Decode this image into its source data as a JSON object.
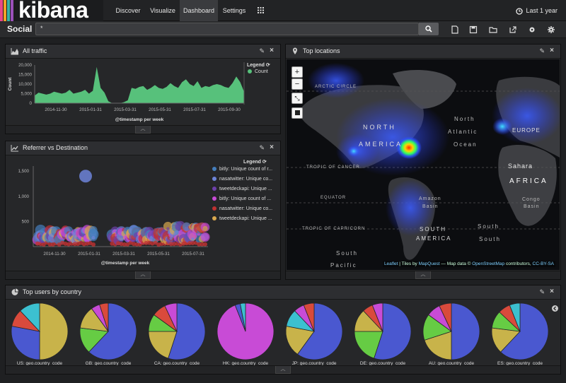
{
  "app": {
    "logo": "kibana",
    "logo_colors": [
      "#e8478b",
      "#f2a329",
      "#38b4a6",
      "#9b50ba"
    ]
  },
  "nav": {
    "items": [
      "Discover",
      "Visualize",
      "Dashboard",
      "Settings"
    ],
    "active": "Dashboard",
    "grid_icon": "grid-icon",
    "time_filter": "Last 1 year"
  },
  "subbar": {
    "title": "Social",
    "query": "*",
    "search_icon": "search-icon",
    "toolbar_icons": [
      "new-dashboard-icon",
      "save-icon",
      "open-folder-icon",
      "share-icon",
      "gear-icon",
      "settings-icon"
    ]
  },
  "panels": {
    "all_traffic": {
      "title": "All traffic",
      "legend_title": "Legend",
      "legend_items": [
        "Count"
      ],
      "legend_color": "#57c17b",
      "ylabel": "Count",
      "yticks": [
        "20,000",
        "15,000",
        "10,000",
        "5,000",
        "0"
      ],
      "xticks": [
        "2014-11-30",
        "2015-01-31",
        "2015-03-31",
        "2015-05-31",
        "2015-07-31",
        "2015-09-30"
      ],
      "xlabel": "@timestamp per week"
    },
    "referrer": {
      "title": "Referrer vs Destination",
      "legend_title": "Legend",
      "yticks": [
        "1,500",
        "1,000",
        "500"
      ],
      "xticks": [
        "2014-11-30",
        "2015-01-31",
        "2015-03-31",
        "2015-05-31",
        "2015-07-31",
        "2015-09-30"
      ],
      "xlabel": "@timestamp per week",
      "legend_items": [
        {
          "label": "bitly: Unique count of r...",
          "color": "#447ebc"
        },
        {
          "label": "nasatwitter: Unique co...",
          "color": "#6d84d8"
        },
        {
          "label": "tweetdeckapi: Unique ...",
          "color": "#6e40aa"
        },
        {
          "label": "bitly: Unique count of ...",
          "color": "#c84bd6"
        },
        {
          "label": "nasatwitter: Unique co...",
          "color": "#bf3232"
        },
        {
          "label": "tweetdeckapi: Unique ...",
          "color": "#d9a84e"
        }
      ]
    },
    "top_locations": {
      "title": "Top locations",
      "labels": {
        "arctic": "ARCTIC CIRCLE",
        "na": "NORTH",
        "na2": "AMERICA",
        "north": "North",
        "atlantic": "Atlantic",
        "ocean": "Ocean",
        "europe": "EUROPE",
        "sahara": "Sahara",
        "africa": "AFRICA",
        "cancer": "TROPIC OF CANCER",
        "equator": "EQUATOR",
        "amazon": "Amazon",
        "basin": "Basin",
        "capricorn": "TROPIC OF CAPRICORN",
        "sa": "SOUTH",
        "sa2": "AMERICA",
        "congo": "Congo",
        "basin2": "Basin",
        "south": "South",
        "south2": "South",
        "pacific": "Pacific"
      },
      "attribution_leaflet": "Leaflet",
      "attribution_mid": " | Tiles by ",
      "attribution_mq": "MapQuest",
      "attribution_mid2": " — Map data © ",
      "attribution_osm": "OpenStreetMap",
      "attribution_end": " contributors, ",
      "attribution_cc": "CC-BY-SA"
    },
    "top_users": {
      "title": "Top users by country",
      "pies": [
        {
          "label": "US: geo.country_code",
          "slices": [
            {
              "v": 0.5,
              "c": "#c8b34a"
            },
            {
              "v": 0.28,
              "c": "#4a58d0"
            },
            {
              "v": 0.1,
              "c": "#d94a3c"
            },
            {
              "v": 0.12,
              "c": "#3cc0d0"
            }
          ]
        },
        {
          "label": "GB: geo.country_code",
          "slices": [
            {
              "v": 0.62,
              "c": "#4a58d0"
            },
            {
              "v": 0.15,
              "c": "#66cc44"
            },
            {
              "v": 0.13,
              "c": "#c8b34a"
            },
            {
              "v": 0.05,
              "c": "#c84bd6"
            },
            {
              "v": 0.05,
              "c": "#d94a3c"
            }
          ]
        },
        {
          "label": "CA: geo.country_code",
          "slices": [
            {
              "v": 0.55,
              "c": "#4a58d0"
            },
            {
              "v": 0.2,
              "c": "#c8b34a"
            },
            {
              "v": 0.1,
              "c": "#66cc44"
            },
            {
              "v": 0.08,
              "c": "#d94a3c"
            },
            {
              "v": 0.07,
              "c": "#c84bd6"
            }
          ]
        },
        {
          "label": "HK: geo.country_code",
          "slices": [
            {
              "v": 0.94,
              "c": "#c84bd6"
            },
            {
              "v": 0.03,
              "c": "#4a58d0"
            },
            {
              "v": 0.03,
              "c": "#3cc0d0"
            }
          ]
        },
        {
          "label": "JP: geo.country_code",
          "slices": [
            {
              "v": 0.6,
              "c": "#4a58d0"
            },
            {
              "v": 0.18,
              "c": "#c8b34a"
            },
            {
              "v": 0.1,
              "c": "#3cc0d0"
            },
            {
              "v": 0.06,
              "c": "#c84bd6"
            },
            {
              "v": 0.06,
              "c": "#d94a3c"
            }
          ]
        },
        {
          "label": "DE: geo.country_code",
          "slices": [
            {
              "v": 0.55,
              "c": "#4a58d0"
            },
            {
              "v": 0.2,
              "c": "#66cc44"
            },
            {
              "v": 0.13,
              "c": "#c8b34a"
            },
            {
              "v": 0.06,
              "c": "#d94a3c"
            },
            {
              "v": 0.06,
              "c": "#c84bd6"
            }
          ]
        },
        {
          "label": "AU: geo.country_code",
          "slices": [
            {
              "v": 0.5,
              "c": "#4a58d0"
            },
            {
              "v": 0.2,
              "c": "#c8b34a"
            },
            {
              "v": 0.15,
              "c": "#66cc44"
            },
            {
              "v": 0.08,
              "c": "#c84bd6"
            },
            {
              "v": 0.07,
              "c": "#d94a3c"
            }
          ]
        },
        {
          "label": "ES: geo.country_code",
          "slices": [
            {
              "v": 0.62,
              "c": "#4a58d0"
            },
            {
              "v": 0.15,
              "c": "#c8b34a"
            },
            {
              "v": 0.1,
              "c": "#66cc44"
            },
            {
              "v": 0.07,
              "c": "#d94a3c"
            },
            {
              "v": 0.06,
              "c": "#3cc0d0"
            }
          ]
        }
      ]
    }
  },
  "chart_data": [
    {
      "type": "area",
      "title": "All traffic",
      "xlabel": "@timestamp per week",
      "ylabel": "Count",
      "ylim": [
        0,
        20000
      ],
      "series": [
        {
          "name": "Count",
          "values": [
            4000,
            5500,
            5000,
            4500,
            5000,
            6000,
            5500,
            5000,
            5500,
            7000,
            5000,
            5500,
            6000,
            7000,
            5000,
            6500,
            19000,
            8000,
            5500,
            1000,
            0,
            0,
            0,
            500,
            1500,
            8000,
            7500,
            8500,
            9000,
            7000,
            8000,
            9500,
            8000,
            7500,
            8500,
            10500,
            9000,
            8000,
            11000,
            12500,
            10000,
            9000,
            11500,
            8000,
            9000,
            8500,
            9500,
            10000,
            9500,
            8500,
            8000,
            10500,
            14000,
            11000,
            6000
          ]
        }
      ]
    },
    {
      "type": "scatter",
      "title": "Referrer vs Destination",
      "xlabel": "@timestamp per week",
      "ylim": [
        0,
        1600
      ],
      "note": "bubble chart",
      "outlier": {
        "x_index": 17,
        "y": 1400
      }
    },
    {
      "type": "pie",
      "title": "Top users by country",
      "categories": [
        "US",
        "GB",
        "CA",
        "HK",
        "JP",
        "DE",
        "AU",
        "ES"
      ]
    }
  ]
}
